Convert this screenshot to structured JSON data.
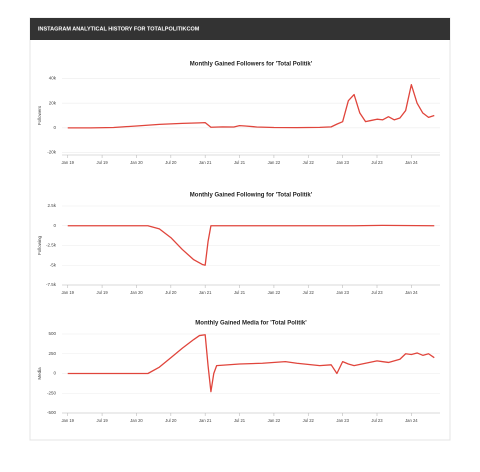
{
  "header": {
    "title": "INSTAGRAM ANALYTICAL HISTORY FOR TOTALPOLITIKCOM"
  },
  "chart_data": [
    {
      "type": "line",
      "title": "Monthly Gained Followers for 'Total Politik'",
      "y_label": "Followers",
      "color": "#e0453c",
      "grid": true,
      "x": [
        0,
        4,
        8,
        12,
        16,
        20,
        23,
        24,
        25,
        27,
        29,
        30,
        31,
        33,
        36,
        40,
        44,
        46,
        47,
        48,
        49,
        50,
        51,
        52,
        53,
        54,
        55,
        56,
        57,
        58,
        59,
        60,
        61,
        62,
        63,
        64
      ],
      "values": [
        0,
        0,
        300,
        1500,
        2800,
        3600,
        4000,
        4200,
        500,
        800,
        700,
        1800,
        1500,
        700,
        300,
        200,
        400,
        800,
        3000,
        5000,
        22000,
        27000,
        12000,
        5000,
        6000,
        7000,
        6500,
        9000,
        6500,
        8000,
        14000,
        35000,
        20000,
        12000,
        8500,
        10000
      ],
      "xlim": [
        -1,
        65
      ],
      "xticks": [
        {
          "value": 0,
          "label": "Jan 19"
        },
        {
          "value": 6,
          "label": "Jul 19"
        },
        {
          "value": 12,
          "label": "Jan 20"
        },
        {
          "value": 18,
          "label": "Jul 20"
        },
        {
          "value": 24,
          "label": "Jan 21"
        },
        {
          "value": 30,
          "label": "Jul 21"
        },
        {
          "value": 36,
          "label": "Jan 22"
        },
        {
          "value": 42,
          "label": "Jul 22"
        },
        {
          "value": 48,
          "label": "Jan 23"
        },
        {
          "value": 54,
          "label": "Jul 23"
        },
        {
          "value": 60,
          "label": "Jan 24"
        }
      ],
      "ylim": [
        -22000,
        42000
      ],
      "yticks": [
        {
          "value": 40000,
          "label": "40k"
        },
        {
          "value": 20000,
          "label": "20k"
        },
        0,
        {
          "value": -20000,
          "label": "-20k"
        }
      ]
    },
    {
      "type": "line",
      "title": "Monthly Gained Following for 'Total Politik'",
      "y_label": "Following",
      "color": "#e0453c",
      "grid": true,
      "x": [
        0,
        14,
        16,
        18,
        20,
        22,
        23.5,
        24,
        24.5,
        25,
        30,
        40,
        50,
        55,
        64
      ],
      "values": [
        0,
        0,
        -400,
        -1500,
        -3000,
        -4300,
        -4900,
        -5000,
        -2000,
        0,
        0,
        0,
        0,
        50,
        0
      ],
      "xlim": [
        -1,
        65
      ],
      "xticks": [
        {
          "value": 0,
          "label": "Jan 19"
        },
        {
          "value": 6,
          "label": "Jul 19"
        },
        {
          "value": 12,
          "label": "Jan 20"
        },
        {
          "value": 18,
          "label": "Jul 20"
        },
        {
          "value": 24,
          "label": "Jan 21"
        },
        {
          "value": 30,
          "label": "Jul 21"
        },
        {
          "value": 36,
          "label": "Jan 22"
        },
        {
          "value": 42,
          "label": "Jul 22"
        },
        {
          "value": 48,
          "label": "Jan 23"
        },
        {
          "value": 54,
          "label": "Jul 23"
        },
        {
          "value": 60,
          "label": "Jan 24"
        }
      ],
      "ylim": [
        -7500,
        2500
      ],
      "yticks": [
        {
          "value": 2500,
          "label": "2.5k"
        },
        0,
        {
          "value": -2500,
          "label": "-2.5k"
        },
        {
          "value": -5000,
          "label": "-5k"
        },
        {
          "value": -7500,
          "label": "-7.5k"
        }
      ]
    },
    {
      "type": "line",
      "title": "Monthly Gained Media for 'Total Politik'",
      "y_label": "Media",
      "color": "#e0453c",
      "grid": true,
      "x": [
        0,
        14,
        16,
        18,
        20,
        22,
        23,
        24,
        24.5,
        25,
        25.5,
        26,
        30,
        34,
        38,
        40,
        44,
        46,
        47,
        48,
        49,
        50,
        52,
        54,
        56,
        58,
        59,
        60,
        61,
        62,
        63,
        64
      ],
      "values": [
        0,
        0,
        80,
        200,
        320,
        430,
        480,
        490,
        100,
        -230,
        0,
        100,
        120,
        130,
        150,
        130,
        100,
        110,
        0,
        150,
        120,
        100,
        130,
        160,
        140,
        180,
        250,
        240,
        260,
        230,
        250,
        200
      ],
      "xlim": [
        -1,
        65
      ],
      "xticks": [
        {
          "value": 0,
          "label": "Jan 19"
        },
        {
          "value": 6,
          "label": "Jul 19"
        },
        {
          "value": 12,
          "label": "Jan 20"
        },
        {
          "value": 18,
          "label": "Jul 20"
        },
        {
          "value": 24,
          "label": "Jan 21"
        },
        {
          "value": 30,
          "label": "Jul 21"
        },
        {
          "value": 36,
          "label": "Jan 22"
        },
        {
          "value": 42,
          "label": "Jul 22"
        },
        {
          "value": 48,
          "label": "Jan 23"
        },
        {
          "value": 54,
          "label": "Jul 23"
        },
        {
          "value": 60,
          "label": "Jan 24"
        }
      ],
      "ylim": [
        -500,
        500
      ],
      "yticks": [
        500,
        250,
        0,
        -250,
        -500
      ]
    }
  ]
}
